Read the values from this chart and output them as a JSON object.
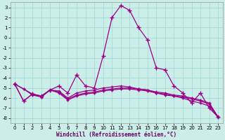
{
  "title": "",
  "xlabel": "Windchill (Refroidissement éolien,°C)",
  "bg_color": "#cceee8",
  "grid_color": "#aadddd",
  "line_color": "#990088",
  "xlim": [
    -0.5,
    23.5
  ],
  "ylim": [
    -8.5,
    3.5
  ],
  "yticks": [
    -8,
    -7,
    -6,
    -5,
    -4,
    -3,
    -2,
    -1,
    0,
    1,
    2,
    3
  ],
  "xticks": [
    0,
    1,
    2,
    3,
    4,
    5,
    6,
    7,
    8,
    9,
    10,
    11,
    12,
    13,
    14,
    15,
    16,
    17,
    18,
    19,
    20,
    21,
    22,
    23
  ],
  "s1_x": [
    0,
    1,
    2,
    3,
    4,
    5,
    6,
    7,
    8,
    9,
    10,
    11,
    12,
    13,
    14,
    15,
    16,
    17,
    18,
    19,
    20,
    21,
    22,
    23
  ],
  "s1_y": [
    -4.6,
    -6.3,
    -5.6,
    -5.8,
    -5.2,
    -5.3,
    -6.0,
    -5.5,
    -5.3,
    -5.2,
    -5.0,
    -4.9,
    -4.8,
    -4.9,
    -5.1,
    -5.2,
    -5.5,
    -5.7,
    -5.8,
    -6.0,
    -6.3,
    -6.5,
    -6.8,
    -7.9
  ],
  "s2_x": [
    0,
    1,
    2,
    3,
    4,
    5,
    6,
    7,
    8,
    9,
    10,
    11,
    12,
    13,
    14,
    15,
    16,
    17,
    18,
    19,
    20,
    21,
    22,
    23
  ],
  "s2_y": [
    -4.6,
    -5.1,
    -5.6,
    -5.9,
    -5.2,
    -5.4,
    -6.1,
    -5.7,
    -5.5,
    -5.4,
    -5.2,
    -5.1,
    -5.0,
    -5.0,
    -5.1,
    -5.2,
    -5.4,
    -5.5,
    -5.7,
    -5.8,
    -6.0,
    -6.2,
    -6.5,
    -7.9
  ],
  "s3_x": [
    0,
    1,
    2,
    3,
    4,
    5,
    6,
    7,
    8,
    9,
    10,
    11,
    12,
    13,
    14,
    15,
    16,
    17,
    18,
    19,
    20,
    21,
    22,
    23
  ],
  "s3_y": [
    -4.6,
    -5.1,
    -5.7,
    -5.9,
    -5.2,
    -5.5,
    -6.2,
    -5.8,
    -5.6,
    -5.5,
    -5.3,
    -5.2,
    -5.1,
    -5.1,
    -5.2,
    -5.3,
    -5.5,
    -5.6,
    -5.8,
    -5.9,
    -6.1,
    -6.3,
    -6.6,
    -7.9
  ],
  "s4_x": [
    0,
    1,
    2,
    3,
    4,
    5,
    6,
    7,
    8,
    9,
    10,
    11,
    12,
    13,
    14,
    15,
    16,
    17,
    18,
    19,
    20,
    21,
    22,
    23
  ],
  "s4_y": [
    -4.6,
    -6.3,
    -5.6,
    -5.8,
    -5.2,
    -4.8,
    -5.5,
    -3.7,
    -4.8,
    -5.0,
    -1.8,
    2.0,
    3.2,
    2.7,
    1.0,
    -0.2,
    -3.0,
    -3.2,
    -4.8,
    -5.5,
    -6.5,
    -5.5,
    -7.0,
    -7.9
  ]
}
